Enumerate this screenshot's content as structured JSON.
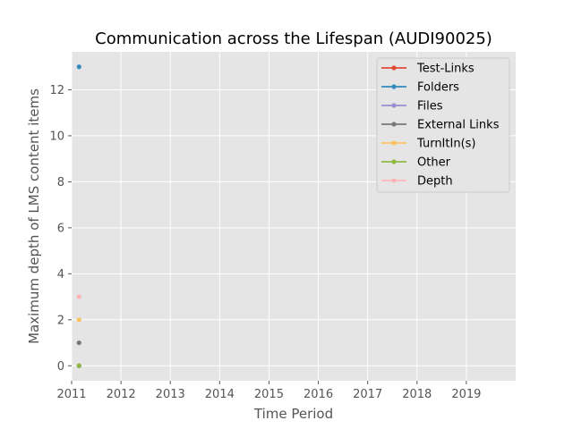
{
  "chart_data": {
    "type": "line",
    "title": "Communication across the Lifespan (AUDI90025)",
    "xlabel": "Time Period",
    "ylabel": "Maximum depth of LMS content items",
    "xlim": [
      2011,
      2020
    ],
    "ylim": [
      -0.65,
      13.65
    ],
    "x_ticks": [
      2011,
      2012,
      2013,
      2014,
      2015,
      2016,
      2017,
      2018,
      2019
    ],
    "y_ticks": [
      0,
      2,
      4,
      6,
      8,
      10,
      12
    ],
    "grid": true,
    "legend_position": "top-right",
    "series": [
      {
        "name": "Test-Links",
        "color": "#E24A33",
        "points": [
          [
            2011.15,
            0
          ]
        ]
      },
      {
        "name": "Folders",
        "color": "#348ABD",
        "points": [
          [
            2011.15,
            13
          ]
        ]
      },
      {
        "name": "Files",
        "color": "#988ED5",
        "points": [
          [
            2011.15,
            0
          ]
        ]
      },
      {
        "name": "External Links",
        "color": "#777777",
        "points": [
          [
            2011.15,
            1
          ]
        ]
      },
      {
        "name": "TurnItIn(s)",
        "color": "#FBC15E",
        "points": [
          [
            2011.15,
            2
          ]
        ]
      },
      {
        "name": "Other",
        "color": "#8EBA42",
        "points": [
          [
            2011.15,
            0
          ]
        ]
      },
      {
        "name": "Depth",
        "color": "#FFB5B8",
        "points": [
          [
            2011.15,
            3
          ]
        ]
      }
    ]
  }
}
